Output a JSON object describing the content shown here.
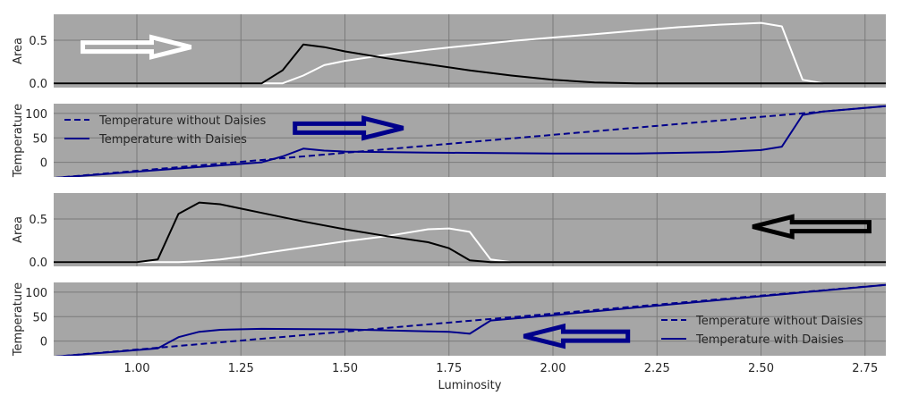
{
  "chart_data": [
    {
      "type": "line",
      "title": "",
      "xlabel": "",
      "ylabel": "Area",
      "xlim": [
        0.8,
        2.8
      ],
      "ylim": [
        -0.05,
        0.8
      ],
      "yticks": [
        0.0,
        0.5
      ],
      "ytick_labels": [
        "0.0",
        "0.5"
      ],
      "grid": true,
      "series": [
        {
          "color": "#ffffff",
          "x": [
            0.8,
            1.35,
            1.4,
            1.45,
            1.5,
            1.6,
            1.7,
            1.8,
            1.9,
            2.0,
            2.1,
            2.2,
            2.3,
            2.4,
            2.5,
            2.55,
            2.6,
            2.65,
            2.8
          ],
          "y": [
            0,
            0,
            0.09,
            0.21,
            0.26,
            0.33,
            0.39,
            0.44,
            0.49,
            0.53,
            0.57,
            0.61,
            0.65,
            0.68,
            0.7,
            0.66,
            0.04,
            0,
            0
          ]
        },
        {
          "color": "#000000",
          "x": [
            0.8,
            1.3,
            1.35,
            1.4,
            1.45,
            1.5,
            1.6,
            1.7,
            1.8,
            1.9,
            2.0,
            2.1,
            2.2,
            2.3,
            2.8
          ],
          "y": [
            0,
            0,
            0.15,
            0.45,
            0.42,
            0.37,
            0.29,
            0.22,
            0.15,
            0.09,
            0.04,
            0.01,
            0,
            0,
            0
          ]
        }
      ],
      "arrow": {
        "direction": "right",
        "color": "#ffffff",
        "x_from": 0.87,
        "x_to": 1.13,
        "y": 0.42
      }
    },
    {
      "type": "line",
      "title": "",
      "xlabel": "",
      "ylabel": "Temperature",
      "xlim": [
        0.8,
        2.8
      ],
      "ylim": [
        -30,
        120
      ],
      "yticks": [
        0,
        50,
        100
      ],
      "ytick_labels": [
        "0",
        "50",
        "100"
      ],
      "grid": true,
      "legend": {
        "placement": "top-left",
        "entries": [
          "Temperature without Daisies",
          "Temperature with Daisies"
        ]
      },
      "series": [
        {
          "name": "Temperature without Daisies",
          "style": "dashed",
          "color": "#00008b",
          "x": [
            0.8,
            2.8
          ],
          "y": [
            -32,
            115
          ]
        },
        {
          "name": "Temperature with Daisies",
          "style": "solid",
          "color": "#00008b",
          "x": [
            0.8,
            1.3,
            1.35,
            1.4,
            1.45,
            1.5,
            1.7,
            2.0,
            2.2,
            2.4,
            2.5,
            2.55,
            2.6,
            2.65,
            2.8
          ],
          "y": [
            -32,
            0,
            12,
            28,
            24,
            22,
            20,
            18,
            18,
            21,
            25,
            32,
            97,
            104,
            115
          ]
        }
      ],
      "arrow": {
        "direction": "right",
        "color": "#00008b",
        "x_from": 1.38,
        "x_to": 1.64,
        "y": 70
      }
    },
    {
      "type": "line",
      "title": "",
      "xlabel": "",
      "ylabel": "Area",
      "xlim": [
        0.8,
        2.8
      ],
      "ylim": [
        -0.05,
        0.8
      ],
      "yticks": [
        0.0,
        0.5
      ],
      "ytick_labels": [
        "0.0",
        "0.5"
      ],
      "grid": true,
      "series": [
        {
          "color": "#ffffff",
          "x": [
            0.8,
            1.05,
            1.1,
            1.15,
            1.2,
            1.25,
            1.3,
            1.4,
            1.5,
            1.6,
            1.7,
            1.75,
            1.8,
            1.85,
            1.9,
            2.8
          ],
          "y": [
            0,
            0,
            0,
            0.01,
            0.03,
            0.06,
            0.1,
            0.17,
            0.24,
            0.3,
            0.38,
            0.39,
            0.35,
            0.03,
            0,
            0
          ]
        },
        {
          "color": "#000000",
          "x": [
            0.8,
            1.0,
            1.05,
            1.1,
            1.15,
            1.2,
            1.25,
            1.3,
            1.4,
            1.5,
            1.6,
            1.7,
            1.75,
            1.8,
            1.85,
            2.8
          ],
          "y": [
            0,
            0,
            0.03,
            0.56,
            0.69,
            0.67,
            0.62,
            0.57,
            0.47,
            0.38,
            0.3,
            0.23,
            0.16,
            0.02,
            0,
            0
          ]
        }
      ],
      "arrow": {
        "direction": "left",
        "color": "#000000",
        "x_from": 2.76,
        "x_to": 2.48,
        "y": 0.41
      }
    },
    {
      "type": "line",
      "title": "",
      "xlabel": "Luminosity",
      "ylabel": "Temperature",
      "xlim": [
        0.8,
        2.8
      ],
      "ylim": [
        -30,
        120
      ],
      "yticks": [
        0,
        50,
        100
      ],
      "ytick_labels": [
        "0",
        "50",
        "100"
      ],
      "xticks": [
        1.0,
        1.25,
        1.5,
        1.75,
        2.0,
        2.25,
        2.5,
        2.75
      ],
      "xtick_labels": [
        "1.00",
        "1.25",
        "1.50",
        "1.75",
        "2.00",
        "2.25",
        "2.50",
        "2.75"
      ],
      "grid": true,
      "legend": {
        "placement": "center-right",
        "entries": [
          "Temperature without Daisies",
          "Temperature with Daisies"
        ]
      },
      "series": [
        {
          "name": "Temperature without Daisies",
          "style": "dashed",
          "color": "#00008b",
          "x": [
            0.8,
            2.8
          ],
          "y": [
            -32,
            115
          ]
        },
        {
          "name": "Temperature with Daisies",
          "style": "solid",
          "color": "#00008b",
          "x": [
            0.8,
            1.05,
            1.1,
            1.15,
            1.2,
            1.3,
            1.5,
            1.7,
            1.75,
            1.8,
            1.85,
            2.0,
            2.8
          ],
          "y": [
            -32,
            -15,
            8,
            19,
            23,
            25,
            24,
            20,
            19,
            15,
            42,
            53,
            115
          ]
        }
      ],
      "arrow": {
        "direction": "left",
        "color": "#00008b",
        "x_from": 2.18,
        "x_to": 1.93,
        "y": 10
      }
    }
  ]
}
